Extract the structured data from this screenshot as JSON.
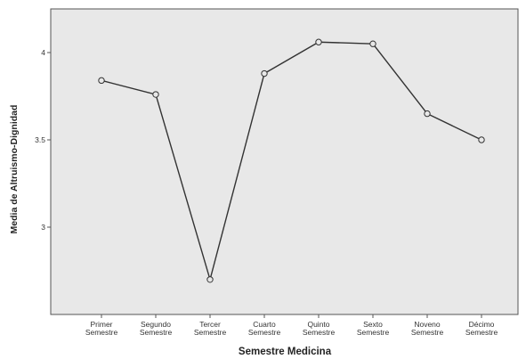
{
  "chart_data": {
    "type": "line",
    "title": "",
    "xlabel": "Semestre Medicina",
    "ylabel": "Media de Altruismo-Dignidad",
    "categories": [
      [
        "Primer",
        "Semestre"
      ],
      [
        "Segundo",
        "Semestre"
      ],
      [
        "Tercer",
        "Semestre"
      ],
      [
        "Cuarto",
        "Semestre"
      ],
      [
        "Quinto",
        "Semestre"
      ],
      [
        "Sexto",
        "Semestre"
      ],
      [
        "Noveno",
        "Semestre"
      ],
      [
        "Décimo",
        "Semestre"
      ]
    ],
    "values": [
      3.84,
      3.76,
      2.7,
      3.88,
      4.06,
      4.05,
      3.65,
      3.5
    ],
    "ylim": [
      2.5,
      4.25
    ],
    "yticks": [
      "3",
      "3.5",
      "4"
    ],
    "marker": "open-circle",
    "grid": false,
    "colors": {
      "plot_background": "#e8e8e8",
      "line": "#333333",
      "marker_fill": "#e8e8e8",
      "axis": "#555555"
    }
  }
}
